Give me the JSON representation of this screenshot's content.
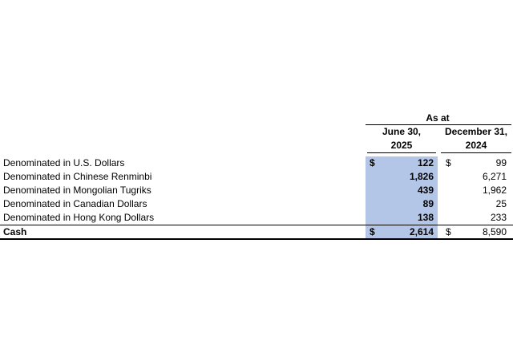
{
  "header": {
    "as_at": "As at",
    "col1_line1": "June 30,",
    "col1_line2": "2025",
    "col2_line1": "December 31,",
    "col2_line2": "2024"
  },
  "rows": [
    {
      "label": "Denominated in U.S. Dollars",
      "cur_sign": "$",
      "current": "122",
      "prior_sign": "$",
      "prior": "99"
    },
    {
      "label": "Denominated in Chinese Renminbi",
      "cur_sign": "",
      "current": "1,826",
      "prior_sign": "",
      "prior": "6,271"
    },
    {
      "label": "Denominated in Mongolian Tugriks",
      "cur_sign": "",
      "current": "439",
      "prior_sign": "",
      "prior": "1,962"
    },
    {
      "label": "Denominated in Canadian Dollars",
      "cur_sign": "",
      "current": "89",
      "prior_sign": "",
      "prior": "25"
    },
    {
      "label": "Denominated in Hong Kong Dollars",
      "cur_sign": "",
      "current": "138",
      "prior_sign": "",
      "prior": "233"
    }
  ],
  "total": {
    "label": "Cash",
    "cur_sign": "$",
    "current": "2,614",
    "prior_sign": "$",
    "prior": "8,590"
  },
  "colors": {
    "highlight": "#b4c6e7"
  }
}
